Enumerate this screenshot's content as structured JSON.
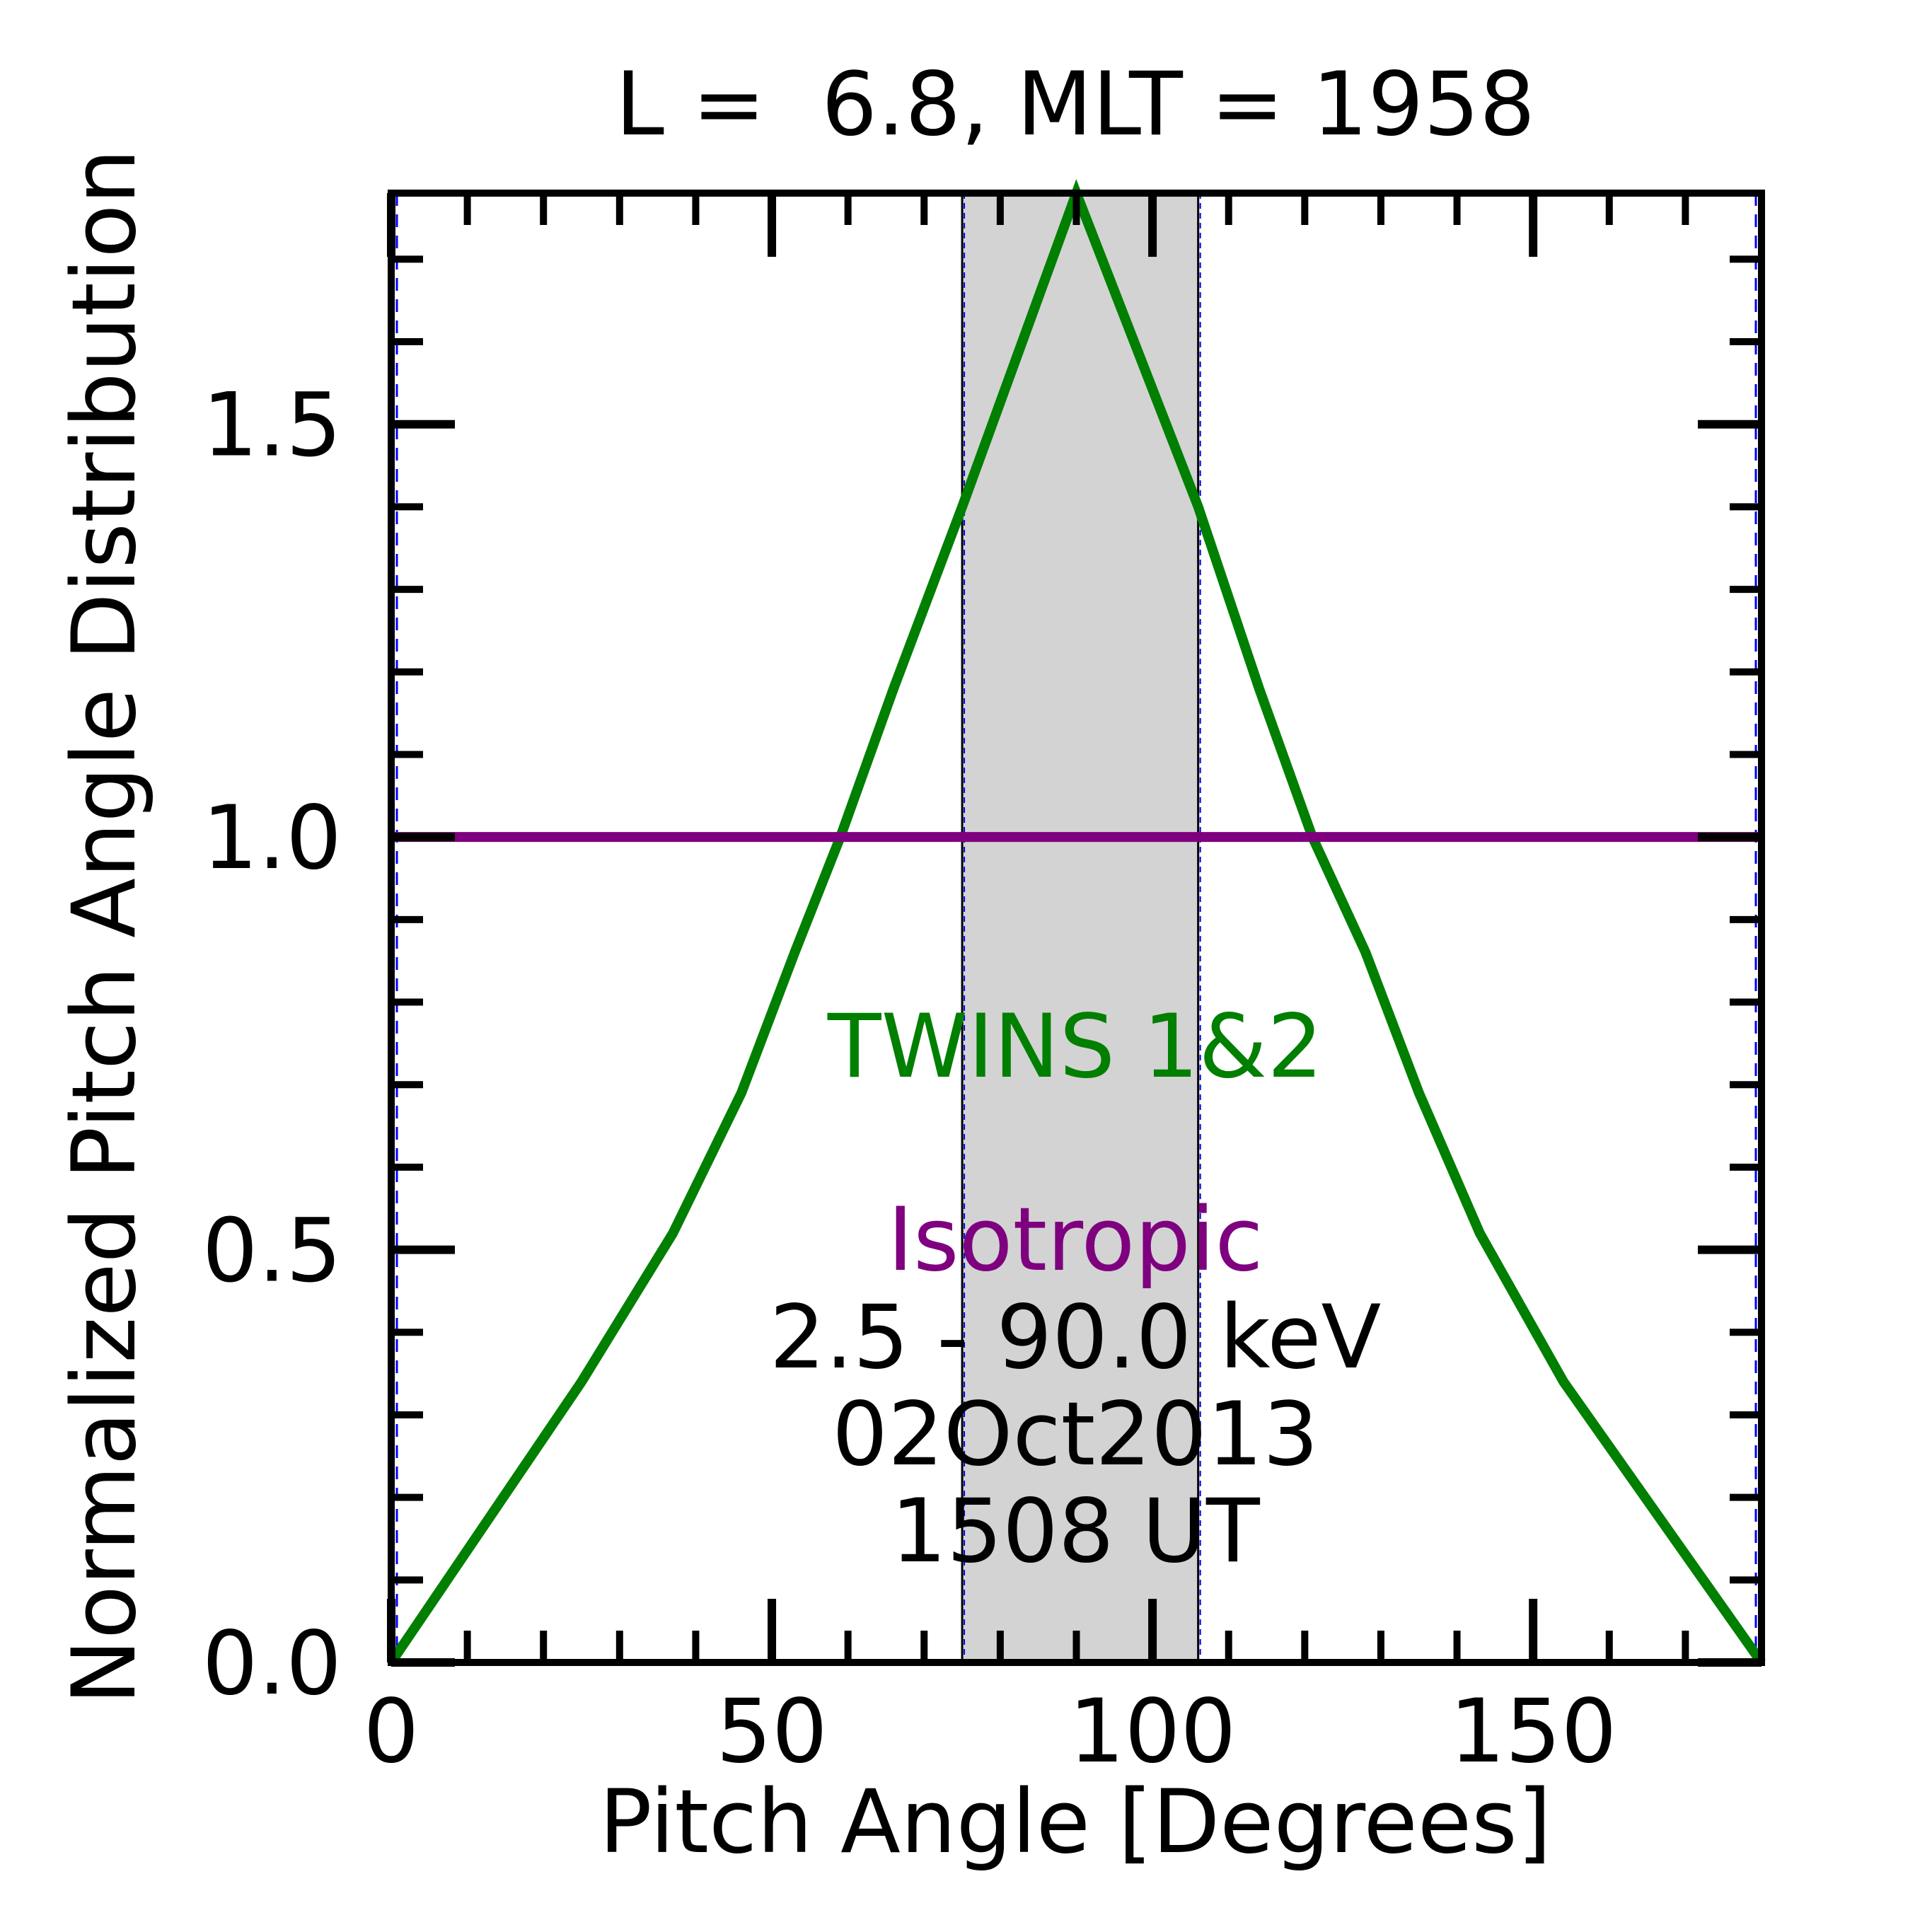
{
  "chart_data": {
    "type": "line",
    "title": "L =  6.8, MLT = 1958",
    "xlabel": "Pitch Angle [Degrees]",
    "ylabel": "Normalized Pitch Angle Distribution",
    "xlim": [
      0,
      180
    ],
    "ylim": [
      0,
      1.78
    ],
    "x_ticks": [
      0,
      50,
      100,
      150
    ],
    "x_tick_labels": [
      "0",
      "50",
      "100",
      "150"
    ],
    "y_ticks": [
      0.0,
      0.5,
      1.0,
      1.5
    ],
    "y_tick_labels": [
      "0.0",
      "0.5",
      "1.0",
      "1.5"
    ],
    "grid": false,
    "shaded_region": {
      "x_start": 75,
      "x_end": 106,
      "color": "#d3d3d3"
    },
    "series": [
      {
        "name": "TWINS 1&2",
        "color": "#007f00",
        "x": [
          0,
          25,
          37,
          46,
          53,
          59,
          66,
          75,
          90,
          106,
          114,
          121,
          128,
          135,
          143,
          154,
          180
        ],
        "y": [
          0.0,
          0.34,
          0.52,
          0.69,
          0.86,
          1.0,
          1.18,
          1.4,
          1.78,
          1.4,
          1.18,
          1.0,
          0.86,
          0.69,
          0.52,
          0.34,
          0.0
        ]
      },
      {
        "name": "Isotropic",
        "color": "#7f007f",
        "x": [
          0,
          180
        ],
        "y": [
          1.0,
          1.0
        ]
      }
    ],
    "annotations": [
      "TWINS 1&2",
      "Isotropic",
      "2.5 - 90.0 keV",
      "02Oct2013",
      "1508 UT"
    ]
  }
}
